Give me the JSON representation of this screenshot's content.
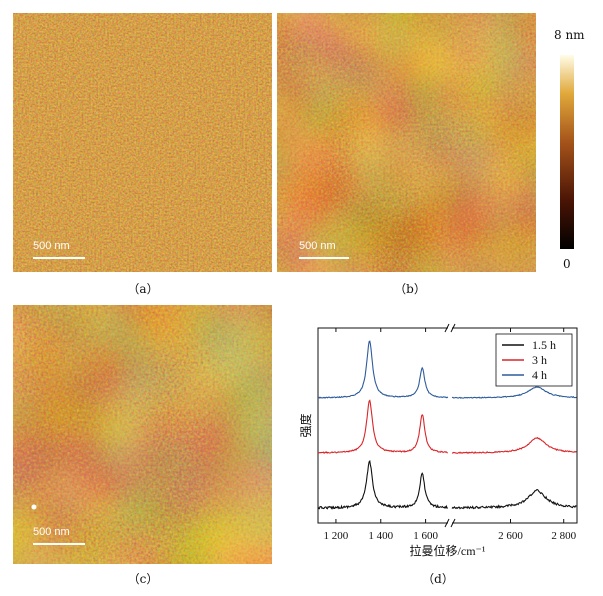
{
  "figure": {
    "panels": {
      "a": {
        "label": "（a）",
        "scalebar": "500 nm"
      },
      "b": {
        "label": "（b）",
        "scalebar": "500 nm"
      },
      "c": {
        "label": "（c）",
        "scalebar": "500 nm"
      },
      "d": {
        "label": "（d）"
      }
    },
    "colorbar": {
      "max_label": "8 nm",
      "min_label": "0"
    }
  },
  "chart_data": {
    "type": "line",
    "xlabel": "拉曼位移/cm⁻¹",
    "ylabel": "强度",
    "x_ticks": [
      "1 200",
      "1 400",
      "1 600",
      "2 600",
      "2 800"
    ],
    "x_ticks_values": [
      1200,
      1400,
      1600,
      2600,
      2800
    ],
    "axis_break": true,
    "xlim_left": [
      1120,
      1700
    ],
    "xlim_right": [
      2380,
      2850
    ],
    "grid": false,
    "legend_position": "top-right",
    "series": [
      {
        "name": "1.5 h",
        "color": "#111111",
        "peaks": [
          {
            "x": 1350,
            "height": 0.75
          },
          {
            "x": 1585,
            "height": 0.55
          },
          {
            "x": 2700,
            "height": 0.28
          }
        ]
      },
      {
        "name": "3 h",
        "color": "#d9262a",
        "peaks": [
          {
            "x": 1350,
            "height": 0.85
          },
          {
            "x": 1585,
            "height": 0.62
          },
          {
            "x": 2700,
            "height": 0.24
          }
        ]
      },
      {
        "name": "4 h",
        "color": "#2e5c9c",
        "peaks": [
          {
            "x": 1350,
            "height": 0.92
          },
          {
            "x": 1585,
            "height": 0.48
          },
          {
            "x": 2700,
            "height": 0.18
          }
        ]
      }
    ]
  }
}
